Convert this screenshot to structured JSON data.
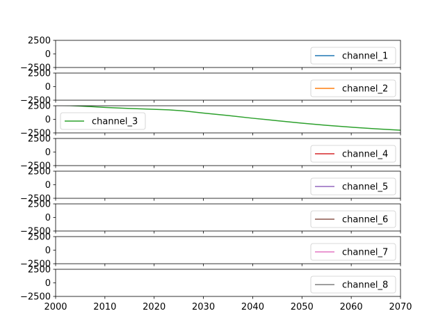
{
  "chart_data": {
    "type": "line",
    "layout": "stacked-subplots",
    "shared_x": true,
    "xlim": [
      2000,
      2070
    ],
    "x_ticks": [
      2000,
      2010,
      2020,
      2030,
      2040,
      2050,
      2060,
      2070
    ],
    "x_tick_labels": [
      "2000",
      "2010",
      "2020",
      "2030",
      "2040",
      "2050",
      "2060",
      "2070"
    ],
    "ylim": [
      -2500,
      2500
    ],
    "y_ticks": [
      2500,
      0,
      -2500
    ],
    "y_tick_labels": [
      "2500",
      "0",
      "−2500"
    ],
    "grid": false,
    "series": [
      {
        "name": "channel_1",
        "color": "#1f77b4",
        "legend_loc": "lower right",
        "x": [],
        "y": []
      },
      {
        "name": "channel_2",
        "color": "#ff7f0e",
        "legend_loc": "lower right",
        "x": [],
        "y": []
      },
      {
        "name": "channel_3",
        "color": "#2ca02c",
        "legend_loc": "lower left",
        "x": [
          2000,
          2005,
          2010,
          2015,
          2020,
          2023,
          2026,
          2030,
          2035,
          2040,
          2045,
          2050,
          2055,
          2060,
          2065,
          2070
        ],
        "y": [
          2650,
          2450,
          2200,
          2000,
          1850,
          1750,
          1550,
          1150,
          700,
          200,
          -250,
          -700,
          -1100,
          -1450,
          -1750,
          -2000
        ]
      },
      {
        "name": "channel_4",
        "color": "#d62728",
        "legend_loc": "lower right",
        "x": [],
        "y": []
      },
      {
        "name": "channel_5",
        "color": "#9467bd",
        "legend_loc": "lower right",
        "x": [],
        "y": []
      },
      {
        "name": "channel_6",
        "color": "#8c564b",
        "legend_loc": "lower right",
        "x": [],
        "y": []
      },
      {
        "name": "channel_7",
        "color": "#e377c2",
        "legend_loc": "lower right",
        "x": [],
        "y": []
      },
      {
        "name": "channel_8",
        "color": "#7f7f7f",
        "legend_loc": "lower right",
        "x": [],
        "y": []
      }
    ]
  }
}
